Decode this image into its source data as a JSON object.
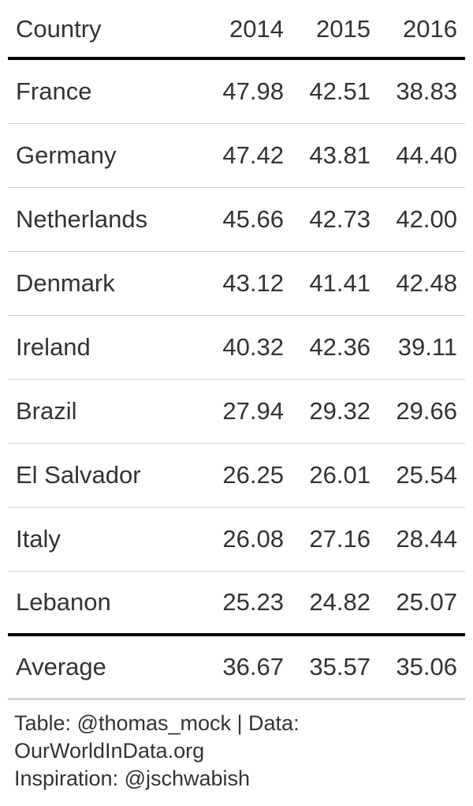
{
  "chart_data": {
    "type": "table",
    "columns": [
      "Country",
      "2014",
      "2015",
      "2016"
    ],
    "rows": [
      {
        "country": "France",
        "values": [
          "47.98",
          "42.51",
          "38.83"
        ]
      },
      {
        "country": "Germany",
        "values": [
          "47.42",
          "43.81",
          "44.40"
        ]
      },
      {
        "country": "Netherlands",
        "values": [
          "45.66",
          "42.73",
          "42.00"
        ]
      },
      {
        "country": "Denmark",
        "values": [
          "43.12",
          "41.41",
          "42.48"
        ]
      },
      {
        "country": "Ireland",
        "values": [
          "40.32",
          "42.36",
          "39.11"
        ]
      },
      {
        "country": "Brazil",
        "values": [
          "27.94",
          "29.32",
          "29.66"
        ]
      },
      {
        "country": "El Salvador",
        "values": [
          "26.25",
          "26.01",
          "25.54"
        ]
      },
      {
        "country": "Italy",
        "values": [
          "26.08",
          "27.16",
          "28.44"
        ]
      },
      {
        "country": "Lebanon",
        "values": [
          "25.23",
          "24.82",
          "25.07"
        ]
      }
    ],
    "summary": {
      "label": "Average",
      "values": [
        "36.67",
        "35.57",
        "35.06"
      ]
    }
  },
  "footer": {
    "line1": "Table: @thomas_mock | Data:",
    "line2": "OurWorldInData.org",
    "line3": "Inspiration: @jschwabish"
  },
  "colors": {
    "text": "#333333",
    "rule_strong": "#000000",
    "rule_light": "#d3d3d3"
  }
}
